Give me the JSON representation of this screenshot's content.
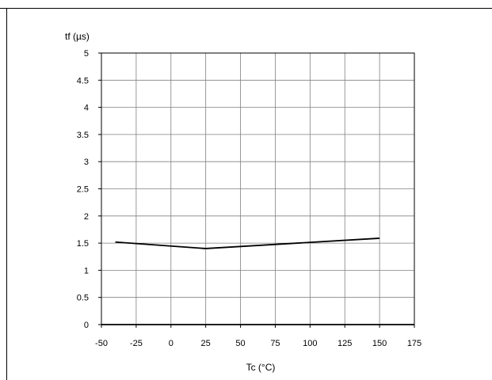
{
  "chart_data": {
    "type": "line",
    "title": "",
    "xlabel": "Tc (°C)",
    "ylabel": "tf (µs)",
    "xlim": [
      -50,
      175
    ],
    "ylim": [
      0,
      5
    ],
    "x_ticks": [
      -50,
      -25,
      0,
      25,
      50,
      75,
      100,
      125,
      150,
      175
    ],
    "y_ticks": [
      0,
      0.5,
      1,
      1.5,
      2,
      2.5,
      3,
      3.5,
      4,
      4.5,
      5
    ],
    "x_tick_labels": [
      "-50",
      "-25",
      "0",
      "25",
      "50",
      "75",
      "100",
      "125",
      "150",
      "175"
    ],
    "y_tick_labels": [
      "0",
      "0.5",
      "1",
      "1.5",
      "2",
      "2.5",
      "3",
      "3.5",
      "4",
      "4.5",
      "5"
    ],
    "grid": true,
    "series": [
      {
        "x": [
          -40,
          25,
          150
        ],
        "values": [
          1.52,
          1.4,
          1.59
        ]
      }
    ],
    "colors": {
      "line": "#000000",
      "grid": "#808080",
      "axis": "#000000"
    }
  }
}
